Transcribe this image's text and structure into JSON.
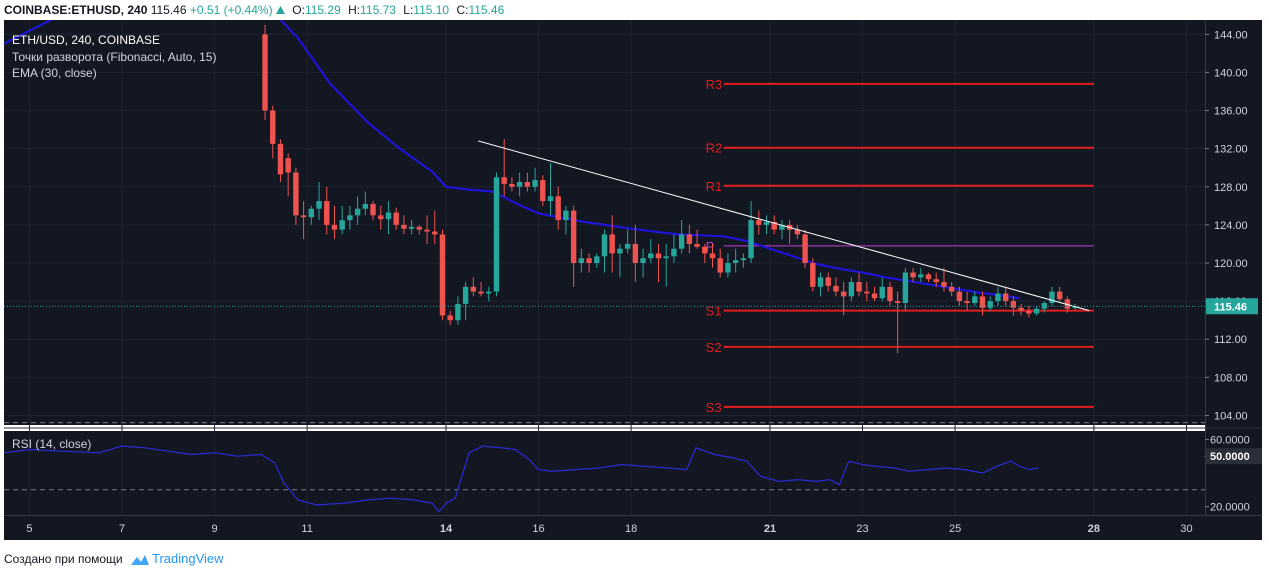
{
  "header": {
    "symbol": "COINBASE:ETHUSD, 240",
    "last": "115.46",
    "change": "+0.51 (+0.44%)",
    "open_label": "O:",
    "open": "115.29",
    "high_label": "H:",
    "high": "115.73",
    "low_label": "L:",
    "low": "115.10",
    "close_label": "C:",
    "close": "115.46"
  },
  "legend": {
    "title": "ETH/USD, 240, COINBASE",
    "pivots": "Точки разворота (Fibonacci, Auto, 15)",
    "ema": "EMA (30, close)",
    "rsi": "RSI (14, close)"
  },
  "footer": {
    "created_with": "Создано при помощи",
    "brand": "TradingView"
  },
  "colors": {
    "background": "#131722",
    "up": "#26a69a",
    "down": "#ef5350",
    "ema": "#1e13d6",
    "pivot_rs": "#e11d1d",
    "pivot_p": "#c53bd3",
    "rsi": "#2c2ad6",
    "trendline": "#ffffff",
    "price_tag": "#26a69a"
  },
  "chart_data": [
    {
      "type": "candlestick",
      "yaxis": {
        "range": [
          103,
          145.5
        ],
        "ticks": [
          "104.00",
          "108.00",
          "112.00",
          "116.00",
          "120.00",
          "124.00",
          "128.00",
          "132.00",
          "136.00",
          "140.00",
          "144.00"
        ]
      },
      "xaxis": {
        "range": [
          4.45,
          30.4
        ],
        "ticks": [
          "5",
          "7",
          "9",
          "11",
          "14",
          "16",
          "18",
          "21",
          "23",
          "25",
          "28",
          "30"
        ],
        "tick_days": [
          5,
          7,
          9,
          11,
          14,
          16,
          18,
          21,
          23,
          25,
          28,
          30
        ],
        "bold": [
          "14",
          "21",
          "28"
        ]
      },
      "last_price": 115.46,
      "last_price_label": "115.46",
      "candles": {
        "start_day": 10.09,
        "step_day": 0.1667,
        "ohlc": [
          [
            144.0,
            145.0,
            135.0,
            136.0
          ],
          [
            136.0,
            136.5,
            131.0,
            132.5
          ],
          [
            132.5,
            133.0,
            128.5,
            129.3
          ],
          [
            131.0,
            131.5,
            127.0,
            129.5
          ],
          [
            129.5,
            130.0,
            124.0,
            125.0
          ],
          [
            125.0,
            126.5,
            122.5,
            124.8
          ],
          [
            124.8,
            126.0,
            124.0,
            125.7
          ],
          [
            125.7,
            128.5,
            124.5,
            126.5
          ],
          [
            126.5,
            128.0,
            123.0,
            124.0
          ],
          [
            124.0,
            126.0,
            122.5,
            123.5
          ],
          [
            123.5,
            126.0,
            123.0,
            124.5
          ],
          [
            124.5,
            126.0,
            123.5,
            125.0
          ],
          [
            125.0,
            127.0,
            124.0,
            125.7
          ],
          [
            125.7,
            127.5,
            125.0,
            126.2
          ],
          [
            126.2,
            126.5,
            124.5,
            125.0
          ],
          [
            125.0,
            126.0,
            123.5,
            124.6
          ],
          [
            124.6,
            126.5,
            123.0,
            125.3
          ],
          [
            125.3,
            125.8,
            123.5,
            124.0
          ],
          [
            124.0,
            125.0,
            123.0,
            123.6
          ],
          [
            123.6,
            124.5,
            123.0,
            123.8
          ],
          [
            123.8,
            124.0,
            123.0,
            123.5
          ],
          [
            123.5,
            125.0,
            122.0,
            123.3
          ],
          [
            123.3,
            125.5,
            122.0,
            123.0
          ],
          [
            123.0,
            123.5,
            114.0,
            114.5
          ],
          [
            114.5,
            115.0,
            113.5,
            114.0
          ],
          [
            114.0,
            116.5,
            113.5,
            115.7
          ],
          [
            115.7,
            118.0,
            114.0,
            117.5
          ],
          [
            117.5,
            118.5,
            116.5,
            117.0
          ],
          [
            117.0,
            118.0,
            116.5,
            116.8
          ],
          [
            116.8,
            117.5,
            116.0,
            117.0
          ],
          [
            117.0,
            129.5,
            116.5,
            129.0
          ],
          [
            129.0,
            133.0,
            127.0,
            128.3
          ],
          [
            128.3,
            129.0,
            127.5,
            128.0
          ],
          [
            128.0,
            129.5,
            127.0,
            128.5
          ],
          [
            128.5,
            129.5,
            127.5,
            128.0
          ],
          [
            128.0,
            130.0,
            127.5,
            128.7
          ],
          [
            128.7,
            129.2,
            126.0,
            126.5
          ],
          [
            126.5,
            130.5,
            125.0,
            127.0
          ],
          [
            127.0,
            128.0,
            123.5,
            124.5
          ],
          [
            124.5,
            126.0,
            123.0,
            125.5
          ],
          [
            125.5,
            126.0,
            117.5,
            120.0
          ],
          [
            120.0,
            121.5,
            119.0,
            120.5
          ],
          [
            120.5,
            121.0,
            119.0,
            120.0
          ],
          [
            120.0,
            121.0,
            119.5,
            120.7
          ],
          [
            120.7,
            123.5,
            119.0,
            123.0
          ],
          [
            123.0,
            125.0,
            119.0,
            121.0
          ],
          [
            121.0,
            122.0,
            118.5,
            121.5
          ],
          [
            121.5,
            123.5,
            121.0,
            122.0
          ],
          [
            122.0,
            124.0,
            118.0,
            120.0
          ],
          [
            120.0,
            121.5,
            118.5,
            120.5
          ],
          [
            120.5,
            122.5,
            120.0,
            121.0
          ],
          [
            121.0,
            122.0,
            118.0,
            120.5
          ],
          [
            120.5,
            122.0,
            117.5,
            120.7
          ],
          [
            120.7,
            123.0,
            120.0,
            121.5
          ],
          [
            121.5,
            124.5,
            121.0,
            123.0
          ],
          [
            123.0,
            124.0,
            121.0,
            122.0
          ],
          [
            122.0,
            123.5,
            121.5,
            121.7
          ],
          [
            121.7,
            122.0,
            120.0,
            121.0
          ],
          [
            121.0,
            122.0,
            119.5,
            120.5
          ],
          [
            120.5,
            121.5,
            118.5,
            119.0
          ],
          [
            119.0,
            121.0,
            118.5,
            120.0
          ],
          [
            120.0,
            121.5,
            119.0,
            120.3
          ],
          [
            120.3,
            121.0,
            119.5,
            120.5
          ],
          [
            120.5,
            126.5,
            120.0,
            124.5
          ],
          [
            124.5,
            125.5,
            123.0,
            124.0
          ],
          [
            124.0,
            125.0,
            123.0,
            124.3
          ],
          [
            124.3,
            125.0,
            123.0,
            123.5
          ],
          [
            123.5,
            124.5,
            122.5,
            124.0
          ],
          [
            124.0,
            124.5,
            122.0,
            123.5
          ],
          [
            123.5,
            124.0,
            122.5,
            123.0
          ],
          [
            123.0,
            123.5,
            119.5,
            120.0
          ],
          [
            120.0,
            120.5,
            117.0,
            117.5
          ],
          [
            117.5,
            119.0,
            116.5,
            118.5
          ],
          [
            118.5,
            119.0,
            117.0,
            117.6
          ],
          [
            117.6,
            118.5,
            116.5,
            117.0
          ],
          [
            117.0,
            118.0,
            114.5,
            116.5
          ],
          [
            116.5,
            118.5,
            116.0,
            118.0
          ],
          [
            118.0,
            119.0,
            116.5,
            117.0
          ],
          [
            117.0,
            118.0,
            116.0,
            116.8
          ],
          [
            116.8,
            117.5,
            116.0,
            116.3
          ],
          [
            116.3,
            118.5,
            116.0,
            117.5
          ],
          [
            117.5,
            118.0,
            115.5,
            116.0
          ],
          [
            116.0,
            117.0,
            110.5,
            115.8
          ],
          [
            115.8,
            119.5,
            115.0,
            119.0
          ],
          [
            119.0,
            119.5,
            118.0,
            118.5
          ],
          [
            118.5,
            119.5,
            118.0,
            118.8
          ],
          [
            118.8,
            119.0,
            118.0,
            118.3
          ],
          [
            118.3,
            119.0,
            117.5,
            118.0
          ],
          [
            118.0,
            119.5,
            117.0,
            117.5
          ],
          [
            117.5,
            118.0,
            116.5,
            117.0
          ],
          [
            117.0,
            117.5,
            115.5,
            116.0
          ],
          [
            116.0,
            117.0,
            115.0,
            115.8
          ],
          [
            115.8,
            117.0,
            115.5,
            116.5
          ],
          [
            116.5,
            117.0,
            114.5,
            115.3
          ],
          [
            115.3,
            116.5,
            115.0,
            116.0
          ],
          [
            116.0,
            117.5,
            115.5,
            116.8
          ],
          [
            116.8,
            117.5,
            115.5,
            116.0
          ],
          [
            116.0,
            116.5,
            114.5,
            115.3
          ],
          [
            115.3,
            115.7,
            114.5,
            115.0
          ],
          [
            115.0,
            115.5,
            114.3,
            114.7
          ],
          [
            114.7,
            115.5,
            114.5,
            115.2
          ],
          [
            115.2,
            116.0,
            114.8,
            115.8
          ],
          [
            115.8,
            117.5,
            115.5,
            117.0
          ],
          [
            117.0,
            117.5,
            116.0,
            116.2
          ],
          [
            116.2,
            116.5,
            114.8,
            115.2
          ],
          [
            115.29,
            115.73,
            115.1,
            115.46
          ]
        ]
      },
      "ema_30": [
        [
          4.45,
          143.0
        ],
        [
          5.5,
          145.6
        ],
        [
          6.5,
          146.8
        ],
        [
          7.5,
          146.9
        ],
        [
          8.5,
          146.6
        ],
        [
          9.3,
          146.5
        ],
        [
          10.3,
          146.2
        ],
        [
          10.8,
          143.6
        ],
        [
          11.5,
          138.8
        ],
        [
          12.3,
          134.8
        ],
        [
          13.0,
          132.0
        ],
        [
          13.7,
          129.6
        ],
        [
          14.0,
          128.0
        ],
        [
          14.5,
          127.7
        ],
        [
          15.0,
          127.5
        ],
        [
          15.5,
          126.3
        ],
        [
          16.0,
          125.2
        ],
        [
          17.0,
          124.3
        ],
        [
          18.0,
          123.6
        ],
        [
          19.0,
          123.0
        ],
        [
          20.0,
          122.8
        ],
        [
          20.5,
          122.3
        ],
        [
          21.0,
          121.5
        ],
        [
          21.5,
          120.7
        ],
        [
          22.0,
          119.9
        ],
        [
          22.5,
          119.4
        ],
        [
          23.0,
          119.0
        ],
        [
          23.5,
          118.5
        ],
        [
          24.0,
          118.1
        ],
        [
          24.5,
          117.7
        ],
        [
          25.0,
          117.3
        ],
        [
          25.5,
          116.9
        ],
        [
          26.0,
          116.6
        ],
        [
          26.4,
          116.3
        ]
      ],
      "pivots": [
        {
          "label": "R3",
          "value": 138.8
        },
        {
          "label": "R2",
          "value": 132.1
        },
        {
          "label": "R1",
          "value": 128.1
        },
        {
          "label": "P",
          "value": 121.8
        },
        {
          "label": "S1",
          "value": 115.0
        },
        {
          "label": "S2",
          "value": 111.2
        },
        {
          "label": "S3",
          "value": 104.9
        }
      ],
      "pivot_span": [
        20.0,
        28.0
      ],
      "trendline": [
        [
          14.7,
          132.8
        ],
        [
          27.9,
          115.0
        ]
      ]
    },
    {
      "type": "line",
      "yaxis": {
        "range": [
          15,
          65
        ],
        "ticks": [
          "20.0000",
          "50.0000",
          "60.0000"
        ],
        "levels": [
          30,
          70
        ]
      },
      "rsi_label": "50.0000",
      "rsi": [
        [
          4.45,
          52
        ],
        [
          5.0,
          54
        ],
        [
          5.7,
          53
        ],
        [
          6.5,
          52
        ],
        [
          7.0,
          56
        ],
        [
          7.5,
          55
        ],
        [
          8.0,
          53
        ],
        [
          8.5,
          51
        ],
        [
          9.0,
          52
        ],
        [
          9.5,
          50
        ],
        [
          10.0,
          51
        ],
        [
          10.3,
          46
        ],
        [
          10.5,
          34
        ],
        [
          10.8,
          24
        ],
        [
          11.2,
          21
        ],
        [
          11.8,
          22
        ],
        [
          12.3,
          24
        ],
        [
          12.8,
          25
        ],
        [
          13.3,
          24
        ],
        [
          13.7,
          22
        ],
        [
          13.85,
          17
        ],
        [
          14.0,
          22
        ],
        [
          14.2,
          25
        ],
        [
          14.5,
          52
        ],
        [
          14.8,
          56
        ],
        [
          15.2,
          55
        ],
        [
          15.5,
          54
        ],
        [
          15.8,
          48
        ],
        [
          16.0,
          42
        ],
        [
          16.3,
          41
        ],
        [
          16.8,
          42
        ],
        [
          17.3,
          43
        ],
        [
          17.8,
          45
        ],
        [
          18.3,
          44
        ],
        [
          18.8,
          43
        ],
        [
          19.2,
          42
        ],
        [
          19.4,
          55
        ],
        [
          19.8,
          51
        ],
        [
          20.2,
          49
        ],
        [
          20.5,
          47
        ],
        [
          20.8,
          38
        ],
        [
          21.2,
          35
        ],
        [
          21.6,
          36
        ],
        [
          22.0,
          35
        ],
        [
          22.3,
          36
        ],
        [
          22.5,
          33
        ],
        [
          22.7,
          47
        ],
        [
          23.0,
          45
        ],
        [
          23.3,
          44
        ],
        [
          23.7,
          43
        ],
        [
          24.0,
          41
        ],
        [
          24.4,
          42
        ],
        [
          24.8,
          43
        ],
        [
          25.2,
          42
        ],
        [
          25.6,
          40
        ],
        [
          25.9,
          44
        ],
        [
          26.2,
          47
        ],
        [
          26.4,
          44
        ],
        [
          26.6,
          42
        ],
        [
          26.8,
          43
        ]
      ]
    }
  ]
}
